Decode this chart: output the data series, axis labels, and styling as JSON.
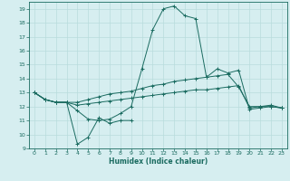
{
  "title": "",
  "xlabel": "Humidex (Indice chaleur)",
  "xlim": [
    -0.5,
    23.5
  ],
  "ylim": [
    9,
    19.5
  ],
  "yticks": [
    9,
    10,
    11,
    12,
    13,
    14,
    15,
    16,
    17,
    18,
    19
  ],
  "xticks": [
    0,
    1,
    2,
    3,
    4,
    5,
    6,
    7,
    8,
    9,
    10,
    11,
    12,
    13,
    14,
    15,
    16,
    17,
    18,
    19,
    20,
    21,
    22,
    23
  ],
  "bg_color": "#d6eef0",
  "grid_color": "#b8dcdc",
  "line_color": "#1a6b60",
  "lines": [
    [
      13.0,
      12.5,
      12.3,
      12.3,
      11.7,
      11.1,
      11.0,
      11.1,
      11.5,
      12.0,
      14.7,
      17.5,
      19.0,
      19.2,
      18.5,
      18.3,
      14.1,
      14.7,
      14.4,
      14.6,
      11.8,
      11.9,
      12.0,
      11.9
    ],
    [
      13.0,
      12.5,
      12.3,
      12.3,
      9.3,
      9.8,
      11.2,
      10.8,
      11.0,
      11.0,
      null,
      null,
      null,
      null,
      null,
      null,
      null,
      null,
      null,
      null,
      null,
      null,
      null,
      null
    ],
    [
      13.0,
      12.5,
      12.3,
      12.3,
      12.3,
      12.5,
      12.7,
      12.9,
      13.0,
      13.1,
      13.3,
      13.5,
      13.6,
      13.8,
      13.9,
      14.0,
      14.1,
      14.2,
      14.3,
      13.4,
      12.0,
      12.0,
      12.1,
      11.9
    ],
    [
      13.0,
      12.5,
      12.3,
      12.3,
      12.1,
      12.2,
      12.3,
      12.4,
      12.5,
      12.6,
      12.7,
      12.8,
      12.9,
      13.0,
      13.1,
      13.2,
      13.2,
      13.3,
      13.4,
      13.5,
      11.9,
      12.0,
      12.0,
      11.9
    ]
  ]
}
